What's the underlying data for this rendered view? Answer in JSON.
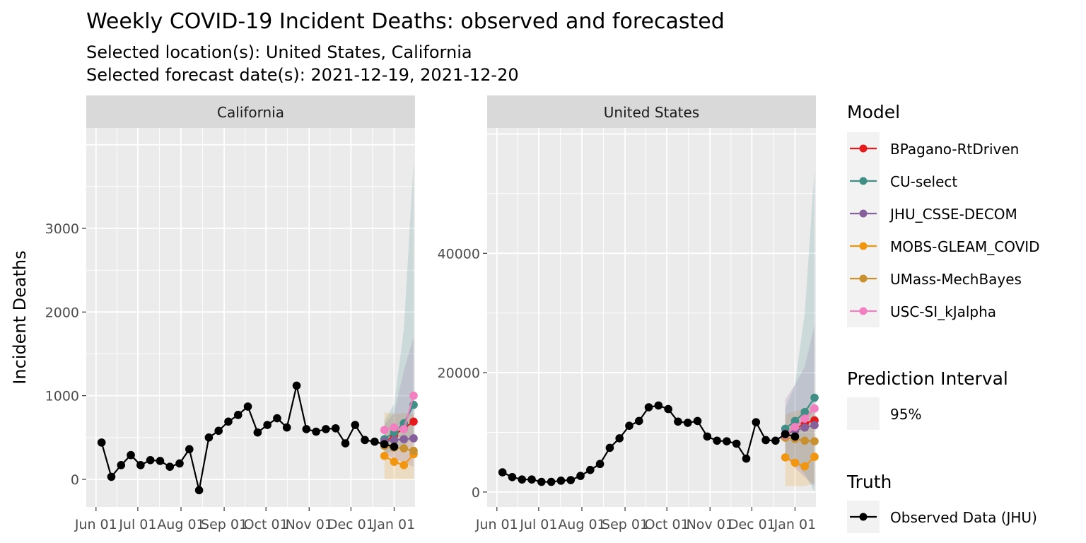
{
  "title": "Weekly COVID-19 Incident Deaths: observed and forecasted",
  "subtitle_line1": "Selected location(s): United States, California",
  "subtitle_line2": "Selected forecast date(s): 2021-12-19, 2021-12-20",
  "ylabel": "Incident Deaths",
  "legend": {
    "model_title": "Model",
    "models": [
      {
        "name": "BPagano-RtDriven",
        "color": "#e41a1c"
      },
      {
        "name": "CU-select",
        "color": "#3f8f87"
      },
      {
        "name": "JHU_CSSE-DECOM",
        "color": "#86609a"
      },
      {
        "name": "MOBS-GLEAM_COVID",
        "color": "#f2950f"
      },
      {
        "name": "UMass-MechBayes",
        "color": "#c8902e"
      },
      {
        "name": "USC-SI_kJalpha",
        "color": "#f27fc0"
      }
    ],
    "interval_title": "Prediction Interval",
    "interval_label": "95%",
    "truth_title": "Truth",
    "truth_label": "Observed Data (JHU)"
  },
  "chart_data": [
    {
      "type": "line",
      "facet": "California",
      "x_ticks": [
        "Jun 01",
        "Jul 01",
        "Aug 01",
        "Sep 01",
        "Oct 01",
        "Nov 01",
        "Dec 01",
        "Jan 01"
      ],
      "y_ticks": [
        "0",
        "1000",
        "2000",
        "3000"
      ],
      "ylim": [
        -330,
        4200
      ],
      "xlim": [
        "2021-05-25",
        "2022-01-16"
      ],
      "truth": {
        "name": "Observed Data (JHU)",
        "x": [
          "2021-06-05",
          "2021-06-12",
          "2021-06-19",
          "2021-06-26",
          "2021-07-03",
          "2021-07-10",
          "2021-07-17",
          "2021-07-24",
          "2021-07-31",
          "2021-08-07",
          "2021-08-14",
          "2021-08-21",
          "2021-08-28",
          "2021-09-04",
          "2021-09-11",
          "2021-09-18",
          "2021-09-25",
          "2021-10-02",
          "2021-10-09",
          "2021-10-16",
          "2021-10-23",
          "2021-10-30",
          "2021-11-06",
          "2021-11-13",
          "2021-11-20",
          "2021-11-27",
          "2021-12-04",
          "2021-12-11",
          "2021-12-18",
          "2021-12-25",
          "2022-01-01"
        ],
        "y": [
          440,
          30,
          170,
          290,
          170,
          230,
          220,
          150,
          190,
          360,
          -130,
          500,
          580,
          690,
          770,
          870,
          560,
          650,
          730,
          620,
          1120,
          600,
          570,
          600,
          610,
          430,
          650,
          470,
          450,
          420,
          390
        ]
      },
      "forecasts": [
        {
          "model": "BPagano-RtDriven",
          "x": [
            "2021-12-25",
            "2022-01-01",
            "2022-01-08",
            "2022-01-15"
          ],
          "y": [
            440,
            530,
            610,
            690
          ]
        },
        {
          "model": "CU-select",
          "x": [
            "2021-12-25",
            "2022-01-01",
            "2022-01-08",
            "2022-01-15"
          ],
          "y": [
            480,
            560,
            670,
            890
          ]
        },
        {
          "model": "JHU_CSSE-DECOM",
          "x": [
            "2021-12-25",
            "2022-01-01",
            "2022-01-08",
            "2022-01-15"
          ],
          "y": [
            450,
            470,
            480,
            490
          ]
        },
        {
          "model": "MOBS-GLEAM_COVID",
          "x": [
            "2021-12-25",
            "2022-01-01",
            "2022-01-08",
            "2022-01-15"
          ],
          "y": [
            280,
            210,
            170,
            300
          ]
        },
        {
          "model": "UMass-MechBayes",
          "x": [
            "2021-12-25",
            "2022-01-01",
            "2022-01-08",
            "2022-01-15"
          ],
          "y": [
            400,
            380,
            370,
            340
          ]
        },
        {
          "model": "USC-SI_kJalpha",
          "x": [
            "2021-12-25",
            "2022-01-01",
            "2022-01-08",
            "2022-01-15"
          ],
          "y": [
            590,
            620,
            600,
            1000
          ]
        }
      ],
      "intervals_95": [
        {
          "model": "MOBS-GLEAM_COVID",
          "x": [
            "2021-12-25",
            "2022-01-01",
            "2022-01-08",
            "2022-01-15"
          ],
          "lower": [
            0,
            0,
            0,
            0
          ],
          "upper": [
            800,
            780,
            790,
            780
          ]
        },
        {
          "model": "CU-select",
          "x": [
            "2021-12-25",
            "2022-01-01",
            "2022-01-08",
            "2022-01-15"
          ],
          "lower": [
            300,
            350,
            400,
            500
          ],
          "upper": [
            700,
            900,
            1800,
            3800
          ]
        },
        {
          "model": "JHU_CSSE-DECOM",
          "x": [
            "2021-12-25",
            "2022-01-01",
            "2022-01-08",
            "2022-01-15"
          ],
          "lower": [
            300,
            250,
            200,
            150
          ],
          "upper": [
            650,
            800,
            1300,
            1700
          ]
        }
      ]
    },
    {
      "type": "line",
      "facet": "United States",
      "x_ticks": [
        "Jun 01",
        "Jul 01",
        "Aug 01",
        "Sep 01",
        "Oct 01",
        "Nov 01",
        "Dec 01",
        "Jan 01"
      ],
      "y_ticks": [
        "0",
        "20000",
        "40000"
      ],
      "ylim": [
        -2500,
        61000
      ],
      "xlim": [
        "2021-05-25",
        "2022-01-16"
      ],
      "truth": {
        "name": "Observed Data (JHU)",
        "x": [
          "2021-06-05",
          "2021-06-12",
          "2021-06-19",
          "2021-06-26",
          "2021-07-03",
          "2021-07-10",
          "2021-07-17",
          "2021-07-24",
          "2021-07-31",
          "2021-08-07",
          "2021-08-14",
          "2021-08-21",
          "2021-08-28",
          "2021-09-04",
          "2021-09-11",
          "2021-09-18",
          "2021-09-25",
          "2021-10-02",
          "2021-10-09",
          "2021-10-16",
          "2021-10-23",
          "2021-10-30",
          "2021-11-06",
          "2021-11-13",
          "2021-11-20",
          "2021-11-27",
          "2021-12-04",
          "2021-12-11",
          "2021-12-18",
          "2021-12-25",
          "2022-01-01"
        ],
        "y": [
          3300,
          2500,
          2100,
          2100,
          1700,
          1700,
          1900,
          2000,
          2700,
          3700,
          4700,
          7400,
          9000,
          11100,
          11900,
          14200,
          14500,
          13900,
          11800,
          11600,
          11900,
          9300,
          8600,
          8500,
          8100,
          5600,
          11700,
          8700,
          8600,
          9700,
          9300
        ]
      },
      "forecasts": [
        {
          "model": "BPagano-RtDriven",
          "x": [
            "2021-12-25",
            "2022-01-01",
            "2022-01-08",
            "2022-01-15"
          ],
          "y": [
            9600,
            10500,
            11500,
            12000
          ]
        },
        {
          "model": "CU-select",
          "x": [
            "2021-12-25",
            "2022-01-01",
            "2022-01-08",
            "2022-01-15"
          ],
          "y": [
            10600,
            11900,
            13400,
            15800
          ]
        },
        {
          "model": "JHU_CSSE-DECOM",
          "x": [
            "2021-12-25",
            "2022-01-01",
            "2022-01-08",
            "2022-01-15"
          ],
          "y": [
            9800,
            10300,
            10800,
            11200
          ]
        },
        {
          "model": "MOBS-GLEAM_COVID",
          "x": [
            "2021-12-25",
            "2022-01-01",
            "2022-01-08",
            "2022-01-15"
          ],
          "y": [
            5800,
            4900,
            4300,
            5900
          ]
        },
        {
          "model": "UMass-MechBayes",
          "x": [
            "2021-12-25",
            "2022-01-01",
            "2022-01-08",
            "2022-01-15"
          ],
          "y": [
            9100,
            8900,
            8600,
            8500
          ]
        },
        {
          "model": "USC-SI_kJalpha",
          "x": [
            "2021-12-25",
            "2022-01-01",
            "2022-01-08",
            "2022-01-15"
          ],
          "y": [
            9500,
            10900,
            12300,
            14000
          ]
        }
      ],
      "intervals_95": [
        {
          "model": "MOBS-GLEAM_COVID",
          "x": [
            "2021-12-25",
            "2022-01-01",
            "2022-01-08",
            "2022-01-15"
          ],
          "lower": [
            1000,
            1000,
            1000,
            1500
          ],
          "upper": [
            13000,
            13500,
            14000,
            14500
          ]
        },
        {
          "model": "CU-select",
          "x": [
            "2021-12-25",
            "2022-01-01",
            "2022-01-08",
            "2022-01-15"
          ],
          "lower": [
            6000,
            5000,
            3000,
            0
          ],
          "upper": [
            14000,
            18000,
            30000,
            54000
          ]
        },
        {
          "model": "JHU_CSSE-DECOM",
          "x": [
            "2021-12-25",
            "2022-01-01",
            "2022-01-08",
            "2022-01-15"
          ],
          "lower": [
            6000,
            4000,
            2500,
            1000
          ],
          "upper": [
            15500,
            18000,
            21000,
            28000
          ]
        }
      ]
    }
  ]
}
